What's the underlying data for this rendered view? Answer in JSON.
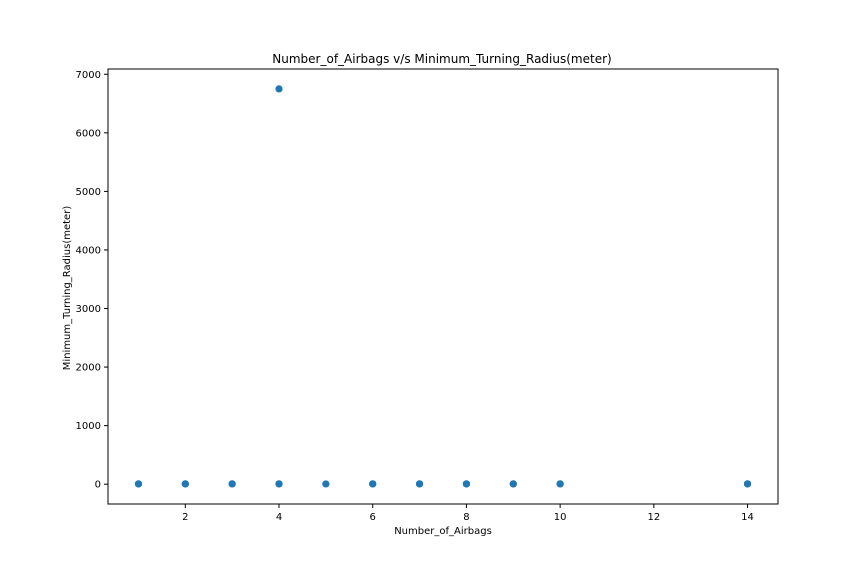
{
  "chart_data": {
    "type": "scatter",
    "title": "Number_of_Airbags v/s Minimum_Turning_Radius(meter)",
    "xlabel": "Number_of_Airbags",
    "ylabel": "Minimum_Turning_Radius(meter)",
    "xlim": [
      0.35,
      14.65
    ],
    "ylim": [
      -338,
      7090
    ],
    "xticks": [
      2,
      4,
      6,
      8,
      10,
      12,
      14
    ],
    "yticks": [
      0,
      1000,
      2000,
      3000,
      4000,
      5000,
      6000,
      7000
    ],
    "grid": false,
    "marker_color": "#1f77b4",
    "points": [
      {
        "x": 1,
        "y": 5
      },
      {
        "x": 1,
        "y": 6
      },
      {
        "x": 2,
        "y": 5
      },
      {
        "x": 2,
        "y": 6
      },
      {
        "x": 3,
        "y": 5
      },
      {
        "x": 3,
        "y": 6
      },
      {
        "x": 4,
        "y": 5
      },
      {
        "x": 4,
        "y": 6
      },
      {
        "x": 4,
        "y": 6750
      },
      {
        "x": 5,
        "y": 5
      },
      {
        "x": 6,
        "y": 5
      },
      {
        "x": 6,
        "y": 6
      },
      {
        "x": 7,
        "y": 5
      },
      {
        "x": 7,
        "y": 6
      },
      {
        "x": 8,
        "y": 5
      },
      {
        "x": 8,
        "y": 6
      },
      {
        "x": 9,
        "y": 5
      },
      {
        "x": 9,
        "y": 6
      },
      {
        "x": 10,
        "y": 5
      },
      {
        "x": 10,
        "y": 6
      },
      {
        "x": 14,
        "y": 5
      },
      {
        "x": 14,
        "y": 6
      }
    ]
  }
}
